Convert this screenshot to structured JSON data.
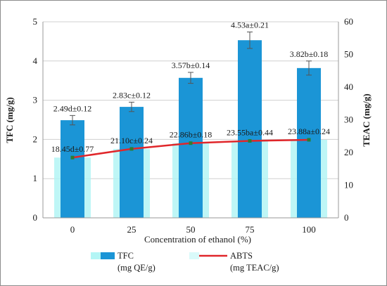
{
  "chart_data": {
    "type": "bar",
    "categories": [
      "0",
      "25",
      "50",
      "75",
      "100"
    ],
    "xlabel": "Concentration of ethanol (%)",
    "ylabel_left": "TFC (mg/g)",
    "ylabel_right": "TEAC (mg/g)",
    "ylim_left": [
      0,
      5
    ],
    "ylim_right": [
      0,
      60
    ],
    "yticks_left": [
      "0",
      "1",
      "2",
      "3",
      "4",
      "5"
    ],
    "yticks_right": [
      "0",
      "10",
      "20",
      "30",
      "40",
      "50",
      "60"
    ],
    "grid": true,
    "colors": {
      "bar": "#1b95d6",
      "bar_shadow": "#b3f5f5",
      "line": "#e0262a",
      "line_marker": "#2e7d32",
      "grid": "#d0d0d0"
    },
    "series": [
      {
        "name": "TFC",
        "axis": "left",
        "kind": "bar",
        "values": [
          2.49,
          2.83,
          3.57,
          4.53,
          3.82
        ],
        "errors": [
          0.12,
          0.12,
          0.14,
          0.21,
          0.18
        ],
        "labels": [
          "2.49d±0.12",
          "2.83c±0.12",
          "3.57b±0.14",
          "4.53a±0.21",
          "3.82b±0.18"
        ]
      },
      {
        "name": "ABTS",
        "axis": "right",
        "kind": "line",
        "values": [
          18.45,
          21.1,
          22.86,
          23.55,
          23.88
        ],
        "labels": [
          "18.45d±0.77",
          "21.10c±0.24",
          "22.86b±0.18",
          "23.55ba±0.44",
          "23.88a±0.24"
        ]
      }
    ],
    "legend": [
      {
        "name": "TFC",
        "unit": "(mg QE/g)"
      },
      {
        "name": "ABTS",
        "unit": "(mg TEAC/g)"
      }
    ],
    "legend_position": "bottom"
  }
}
